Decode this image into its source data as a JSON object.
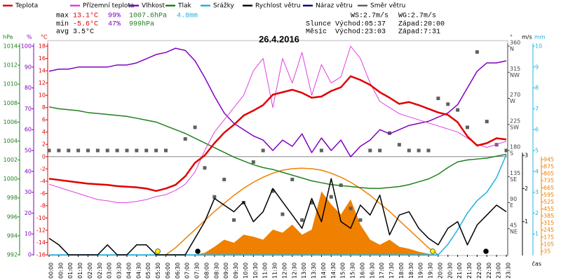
{
  "chart_data": {
    "type": "line",
    "title": "26.4.2016",
    "x_label": "čas",
    "categories": [
      "00:00",
      "00:30",
      "01:00",
      "01:30",
      "02:00",
      "02:30",
      "03:00",
      "03:30",
      "04:00",
      "04:30",
      "05:00",
      "05:30",
      "06:00",
      "06:30",
      "07:00",
      "07:30",
      "08:00",
      "08:30",
      "09:00",
      "09:30",
      "10:00",
      "10:30",
      "11:00",
      "11:30",
      "12:00",
      "12:30",
      "13:00",
      "13:30",
      "14:00",
      "14:30",
      "15:00",
      "15:30",
      "16:00",
      "16:30",
      "17:00",
      "17:30",
      "18:00",
      "18:30",
      "19:00",
      "19:30",
      "20:00",
      "20:30",
      "21:00",
      "21:30",
      "22:00",
      "22:30",
      "23:00",
      "23:30"
    ],
    "axes": {
      "p": {
        "label": "hPa",
        "color": "#208020",
        "lim": [
          992,
          1014
        ],
        "ticks": [
          992,
          994,
          996,
          998,
          1000,
          1002,
          1004,
          1006,
          1008,
          1010,
          1012,
          1014
        ]
      },
      "rh": {
        "label": "%",
        "color": "#8000c0",
        "lim": [
          0,
          100
        ],
        "ticks": [
          0,
          10,
          20,
          30,
          40,
          50,
          60,
          70,
          80,
          90,
          100
        ]
      },
      "t": {
        "label": "°C",
        "color": "#e00000",
        "lim": [
          -16,
          18
        ],
        "ticks": [
          -16,
          -14,
          -12,
          -10,
          -8,
          -6,
          -4,
          -2,
          0,
          2,
          4,
          6,
          8,
          10,
          12,
          14,
          16,
          18
        ]
      },
      "dir": {
        "label": "°",
        "color": "#404040",
        "lim": [
          0,
          360
        ],
        "ticks": [
          45,
          90,
          135,
          180,
          225,
          270,
          315,
          360
        ],
        "tick_names": [
          "NE",
          "E",
          "SE",
          "S",
          "SW",
          "W",
          "NW",
          "N"
        ]
      },
      "ws": {
        "label": "m/s",
        "color": "#000000",
        "lim": [
          0,
          3
        ],
        "ticks": [
          1,
          2,
          3
        ]
      },
      "rain": {
        "label": "mm",
        "color": "#20b0e0",
        "lim": [
          0,
          10
        ],
        "ticks": [
          1,
          2,
          3,
          4,
          5,
          6,
          7,
          8,
          9,
          10
        ]
      },
      "sol": {
        "color": "#f08000",
        "lim": [
          0,
          945
        ],
        "ticks": [
          35,
          105,
          175,
          245,
          315,
          385,
          455,
          525,
          595,
          665,
          735,
          805,
          875,
          945
        ]
      }
    },
    "zero_line": 0,
    "series": [
      {
        "name": "Teplota",
        "color": "#e00000",
        "axis": "t",
        "style": "line",
        "width": 2.5,
        "values": [
          -3.6,
          -3.8,
          -4.0,
          -4.2,
          -4.4,
          -4.5,
          -4.6,
          -4.8,
          -4.9,
          -5.0,
          -5.2,
          -5.6,
          -5.2,
          -4.6,
          -3.2,
          -1.0,
          0.2,
          2.2,
          3.9,
          5.2,
          6.7,
          7.5,
          8.4,
          10.1,
          10.5,
          10.9,
          10.4,
          9.6,
          9.8,
          10.7,
          11.3,
          13.1,
          12.5,
          11.7,
          10.5,
          9.6,
          8.6,
          8.9,
          8.4,
          7.8,
          7.2,
          6.8,
          5.6,
          3.3,
          1.8,
          2.2,
          3.0,
          2.8
        ]
      },
      {
        "name": "Přízemní teplota",
        "color": "#e040e0",
        "axis": "t",
        "style": "line",
        "width": 1,
        "values": [
          -4.5,
          -5,
          -5.5,
          -6,
          -6.5,
          -7,
          -7.2,
          -7.5,
          -7.5,
          -7.3,
          -7,
          -6.5,
          -6.2,
          -5.5,
          -4.5,
          -2.5,
          1,
          4,
          6,
          8,
          10,
          14,
          16,
          8,
          16,
          12,
          17,
          10,
          15,
          12,
          13,
          18,
          16,
          12,
          9,
          8,
          7,
          6.5,
          6,
          5.5,
          5,
          4.5,
          4,
          3,
          2,
          1.5,
          2,
          2.5
        ]
      },
      {
        "name": "Vlhkost",
        "color": "#8000c0",
        "axis": "rh",
        "style": "line",
        "width": 1.5,
        "values": [
          88,
          89,
          89,
          90,
          90,
          90,
          90,
          91,
          91,
          92,
          94,
          96,
          97,
          99,
          98,
          93,
          85,
          76,
          68,
          63,
          60,
          57,
          55,
          50,
          55,
          52,
          58,
          49,
          56,
          50,
          55,
          47,
          52,
          55,
          60,
          58,
          60,
          62,
          63,
          64,
          66,
          68,
          72,
          80,
          88,
          92,
          92,
          93
        ]
      },
      {
        "name": "Tlak",
        "color": "#208020",
        "axis": "p",
        "style": "line",
        "width": 1.5,
        "values": [
          1007.6,
          1007.4,
          1007.3,
          1007.2,
          1007.0,
          1006.9,
          1006.8,
          1006.7,
          1006.6,
          1006.4,
          1006.2,
          1006.0,
          1005.6,
          1005.2,
          1004.8,
          1004.3,
          1003.8,
          1003.3,
          1002.8,
          1002.3,
          1001.9,
          1001.5,
          1001.2,
          1001.0,
          1000.7,
          1000.4,
          1000.1,
          999.8,
          999.6,
          999.4,
          999.3,
          999.2,
          999.1,
          999.0,
          999.0,
          999.1,
          999.2,
          999.4,
          999.7,
          1000.0,
          1000.5,
          1001.2,
          1001.8,
          1002.0,
          1002.1,
          1002.2,
          1002.4,
          1002.6
        ]
      },
      {
        "name": "Srážky",
        "color": "#20b0e0",
        "axis": "rain",
        "style": "line",
        "width": 1.5,
        "values": [
          0,
          0,
          0,
          0,
          0,
          0,
          0,
          0,
          0,
          0,
          0,
          0,
          0,
          0,
          0,
          0,
          0,
          0,
          0,
          0,
          0,
          0,
          0,
          0,
          0,
          0,
          0,
          0,
          0,
          0,
          0,
          0,
          0,
          0,
          0,
          0,
          0,
          0,
          0,
          0,
          0,
          0.5,
          1.2,
          2.0,
          2.6,
          3.0,
          3.7,
          4.8
        ]
      },
      {
        "name": "Rychlost větru",
        "color": "#000000",
        "axis": "ws",
        "style": "line",
        "width": 1.5,
        "values": [
          0.5,
          0.3,
          0,
          0,
          0,
          0,
          0.3,
          0,
          0,
          0.3,
          0.3,
          0,
          0,
          0,
          0,
          0.5,
          1.0,
          1.7,
          1.5,
          1.3,
          1.6,
          1.0,
          1.3,
          2.0,
          1.6,
          1.2,
          0.8,
          1.7,
          1.0,
          2.3,
          1.0,
          0.8,
          1.5,
          1.2,
          1.8,
          0.6,
          1.2,
          1.3,
          0.8,
          0.5,
          0.3,
          0.8,
          1.0,
          0.3,
          0.9,
          1.2,
          1.5,
          1.3
        ]
      },
      {
        "name": "Náraz větru",
        "color": "#000080",
        "axis": "ws",
        "style": "none"
      },
      {
        "name": "Směr větru",
        "color": "#606060",
        "axis": "dir",
        "style": "squares",
        "values": [
          180,
          180,
          180,
          180,
          180,
          180,
          180,
          180,
          180,
          180,
          180,
          180,
          180,
          null,
          200,
          220,
          150,
          100,
          130,
          60,
          90,
          160,
          180,
          110,
          70,
          130,
          60,
          90,
          180,
          100,
          120,
          80,
          60,
          180,
          180,
          210,
          190,
          180,
          180,
          180,
          270,
          260,
          250,
          220,
          350,
          230,
          190,
          180
        ]
      }
    ],
    "solar": {
      "color": "#f08000",
      "axis": "sol",
      "style": "area",
      "values": [
        0,
        0,
        0,
        0,
        0,
        0,
        0,
        0,
        0,
        0,
        0,
        0,
        0,
        0,
        0,
        0,
        20,
        80,
        150,
        120,
        200,
        180,
        150,
        250,
        220,
        300,
        200,
        250,
        630,
        500,
        400,
        550,
        300,
        150,
        100,
        150,
        80,
        60,
        30,
        10,
        0,
        0,
        0,
        0,
        0,
        0,
        0,
        0
      ]
    },
    "solar_theoretical": {
      "color": "#f08000",
      "axis": "sol",
      "style": "line",
      "width": 1.5,
      "values": [
        null,
        null,
        null,
        null,
        null,
        null,
        null,
        null,
        null,
        null,
        null,
        null,
        0,
        70,
        160,
        250,
        340,
        430,
        510,
        590,
        660,
        720,
        770,
        810,
        840,
        855,
        860,
        855,
        840,
        810,
        770,
        720,
        660,
        590,
        510,
        430,
        340,
        250,
        160,
        70,
        0,
        null,
        null,
        null,
        null,
        null,
        null,
        null
      ]
    },
    "stats": {
      "max": {
        "label": "max",
        "t": "13.1°C",
        "rh": "99%",
        "p": "1007.6hPa",
        "rain": "4.8mm"
      },
      "min": {
        "label": "min",
        "t": "-5.6°C",
        "rh": "47%",
        "p": "999hPa"
      },
      "avg": {
        "label": "avg",
        "t": "3.5°C"
      }
    },
    "info": {
      "ws": "WS:2.7m/s",
      "wg": "WG:2.7m/s",
      "sun": {
        "label": "Slunce",
        "rise": "Východ:05:37",
        "set": "Západ:20:00"
      },
      "moon": {
        "label": "Měsíc",
        "rise": "Východ:23:03",
        "set": "Západ:7:31"
      }
    }
  }
}
